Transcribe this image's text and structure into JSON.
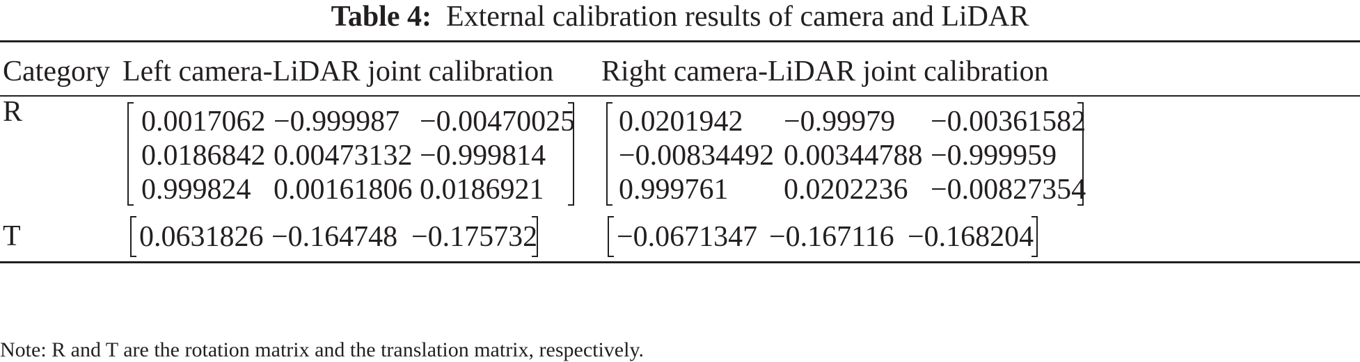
{
  "table": {
    "caption_label": "Table 4:",
    "caption_text": "External calibration results of camera and LiDAR",
    "headers": [
      "Category",
      "Left camera-LiDAR joint calibration",
      "Right camera-LiDAR joint calibration"
    ],
    "rows": [
      {
        "category": "R",
        "left": [
          [
            "0.0017062",
            "−0.999987",
            "−0.00470025"
          ],
          [
            "0.0186842",
            "0.00473132",
            "−0.999814"
          ],
          [
            "0.999824",
            "0.00161806",
            "0.0186921"
          ]
        ],
        "right": [
          [
            "0.0201942",
            "−0.99979",
            "−0.00361582"
          ],
          [
            "−0.00834492",
            "0.00344788",
            "−0.999959"
          ],
          [
            "0.999761",
            "0.0202236",
            "−0.00827354"
          ]
        ]
      },
      {
        "category": "T",
        "left": [
          [
            "0.0631826",
            "−0.164748",
            "−0.175732"
          ]
        ],
        "right": [
          [
            "−0.0671347",
            "−0.167116",
            "−0.168204"
          ]
        ]
      }
    ],
    "note": "Note: R and T are the rotation matrix and the translation matrix, respectively."
  }
}
